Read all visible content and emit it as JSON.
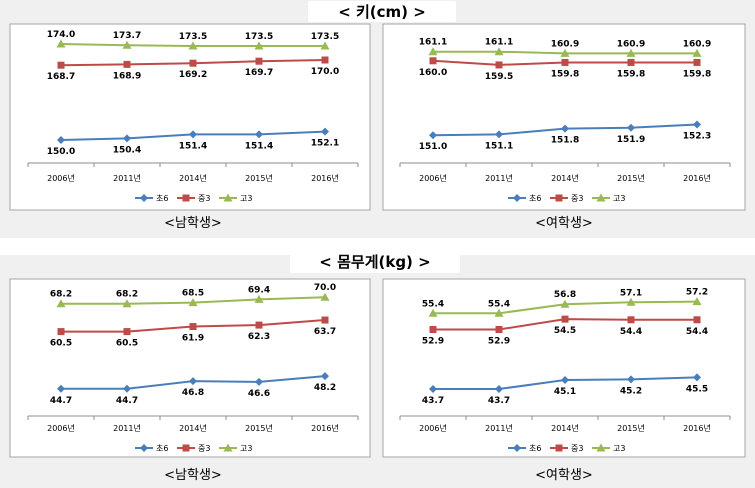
{
  "sections": [
    {
      "title": "< 키(cm) >"
    },
    {
      "title": "< 몸무게(kg) >"
    }
  ],
  "colors": {
    "초6": "#4a7ebb",
    "중3": "#be4b48",
    "고3": "#98b954"
  },
  "chart_data": [
    {
      "type": "line",
      "caption": "<남학생>",
      "categories": [
        "2006년",
        "2011년",
        "2014년",
        "2015년",
        "2016년"
      ],
      "series": [
        {
          "name": "초6",
          "values": [
            150.0,
            150.4,
            151.4,
            151.4,
            152.1
          ]
        },
        {
          "name": "중3",
          "values": [
            168.7,
            168.9,
            169.2,
            169.7,
            170.0
          ]
        },
        {
          "name": "고3",
          "values": [
            174.0,
            173.7,
            173.5,
            173.5,
            173.5
          ]
        }
      ],
      "ylim": [
        145,
        176
      ],
      "legend": "bottom",
      "grid": false
    },
    {
      "type": "line",
      "caption": "<여학생>",
      "categories": [
        "2006년",
        "2011년",
        "2014년",
        "2015년",
        "2016년"
      ],
      "series": [
        {
          "name": "초6",
          "values": [
            151.0,
            151.1,
            151.8,
            151.9,
            152.3
          ]
        },
        {
          "name": "중3",
          "values": [
            160.0,
            159.5,
            159.8,
            159.8,
            159.8
          ]
        },
        {
          "name": "고3",
          "values": [
            161.1,
            161.1,
            160.9,
            160.9,
            160.9
          ]
        }
      ],
      "ylim": [
        148,
        163
      ],
      "legend": "bottom",
      "grid": false
    },
    {
      "type": "line",
      "caption": "<남학생>",
      "categories": [
        "2006년",
        "2011년",
        "2014년",
        "2015년",
        "2016년"
      ],
      "series": [
        {
          "name": "초6",
          "values": [
            44.7,
            44.7,
            46.8,
            46.6,
            48.2
          ]
        },
        {
          "name": "중3",
          "values": [
            60.5,
            60.5,
            61.9,
            62.3,
            63.7
          ]
        },
        {
          "name": "고3",
          "values": [
            68.2,
            68.2,
            68.5,
            69.4,
            70.0
          ]
        }
      ],
      "ylim": [
        38,
        72
      ],
      "legend": "bottom",
      "grid": false
    },
    {
      "type": "line",
      "caption": "<여학생>",
      "categories": [
        "2006년",
        "2011년",
        "2014년",
        "2015년",
        "2016년"
      ],
      "series": [
        {
          "name": "초6",
          "values": [
            43.7,
            43.7,
            45.1,
            45.2,
            45.5
          ]
        },
        {
          "name": "중3",
          "values": [
            52.9,
            52.9,
            54.5,
            54.4,
            54.4
          ]
        },
        {
          "name": "고3",
          "values": [
            55.4,
            55.4,
            56.8,
            57.1,
            57.2
          ]
        }
      ],
      "ylim": [
        40,
        59
      ],
      "legend": "bottom",
      "grid": false
    }
  ]
}
